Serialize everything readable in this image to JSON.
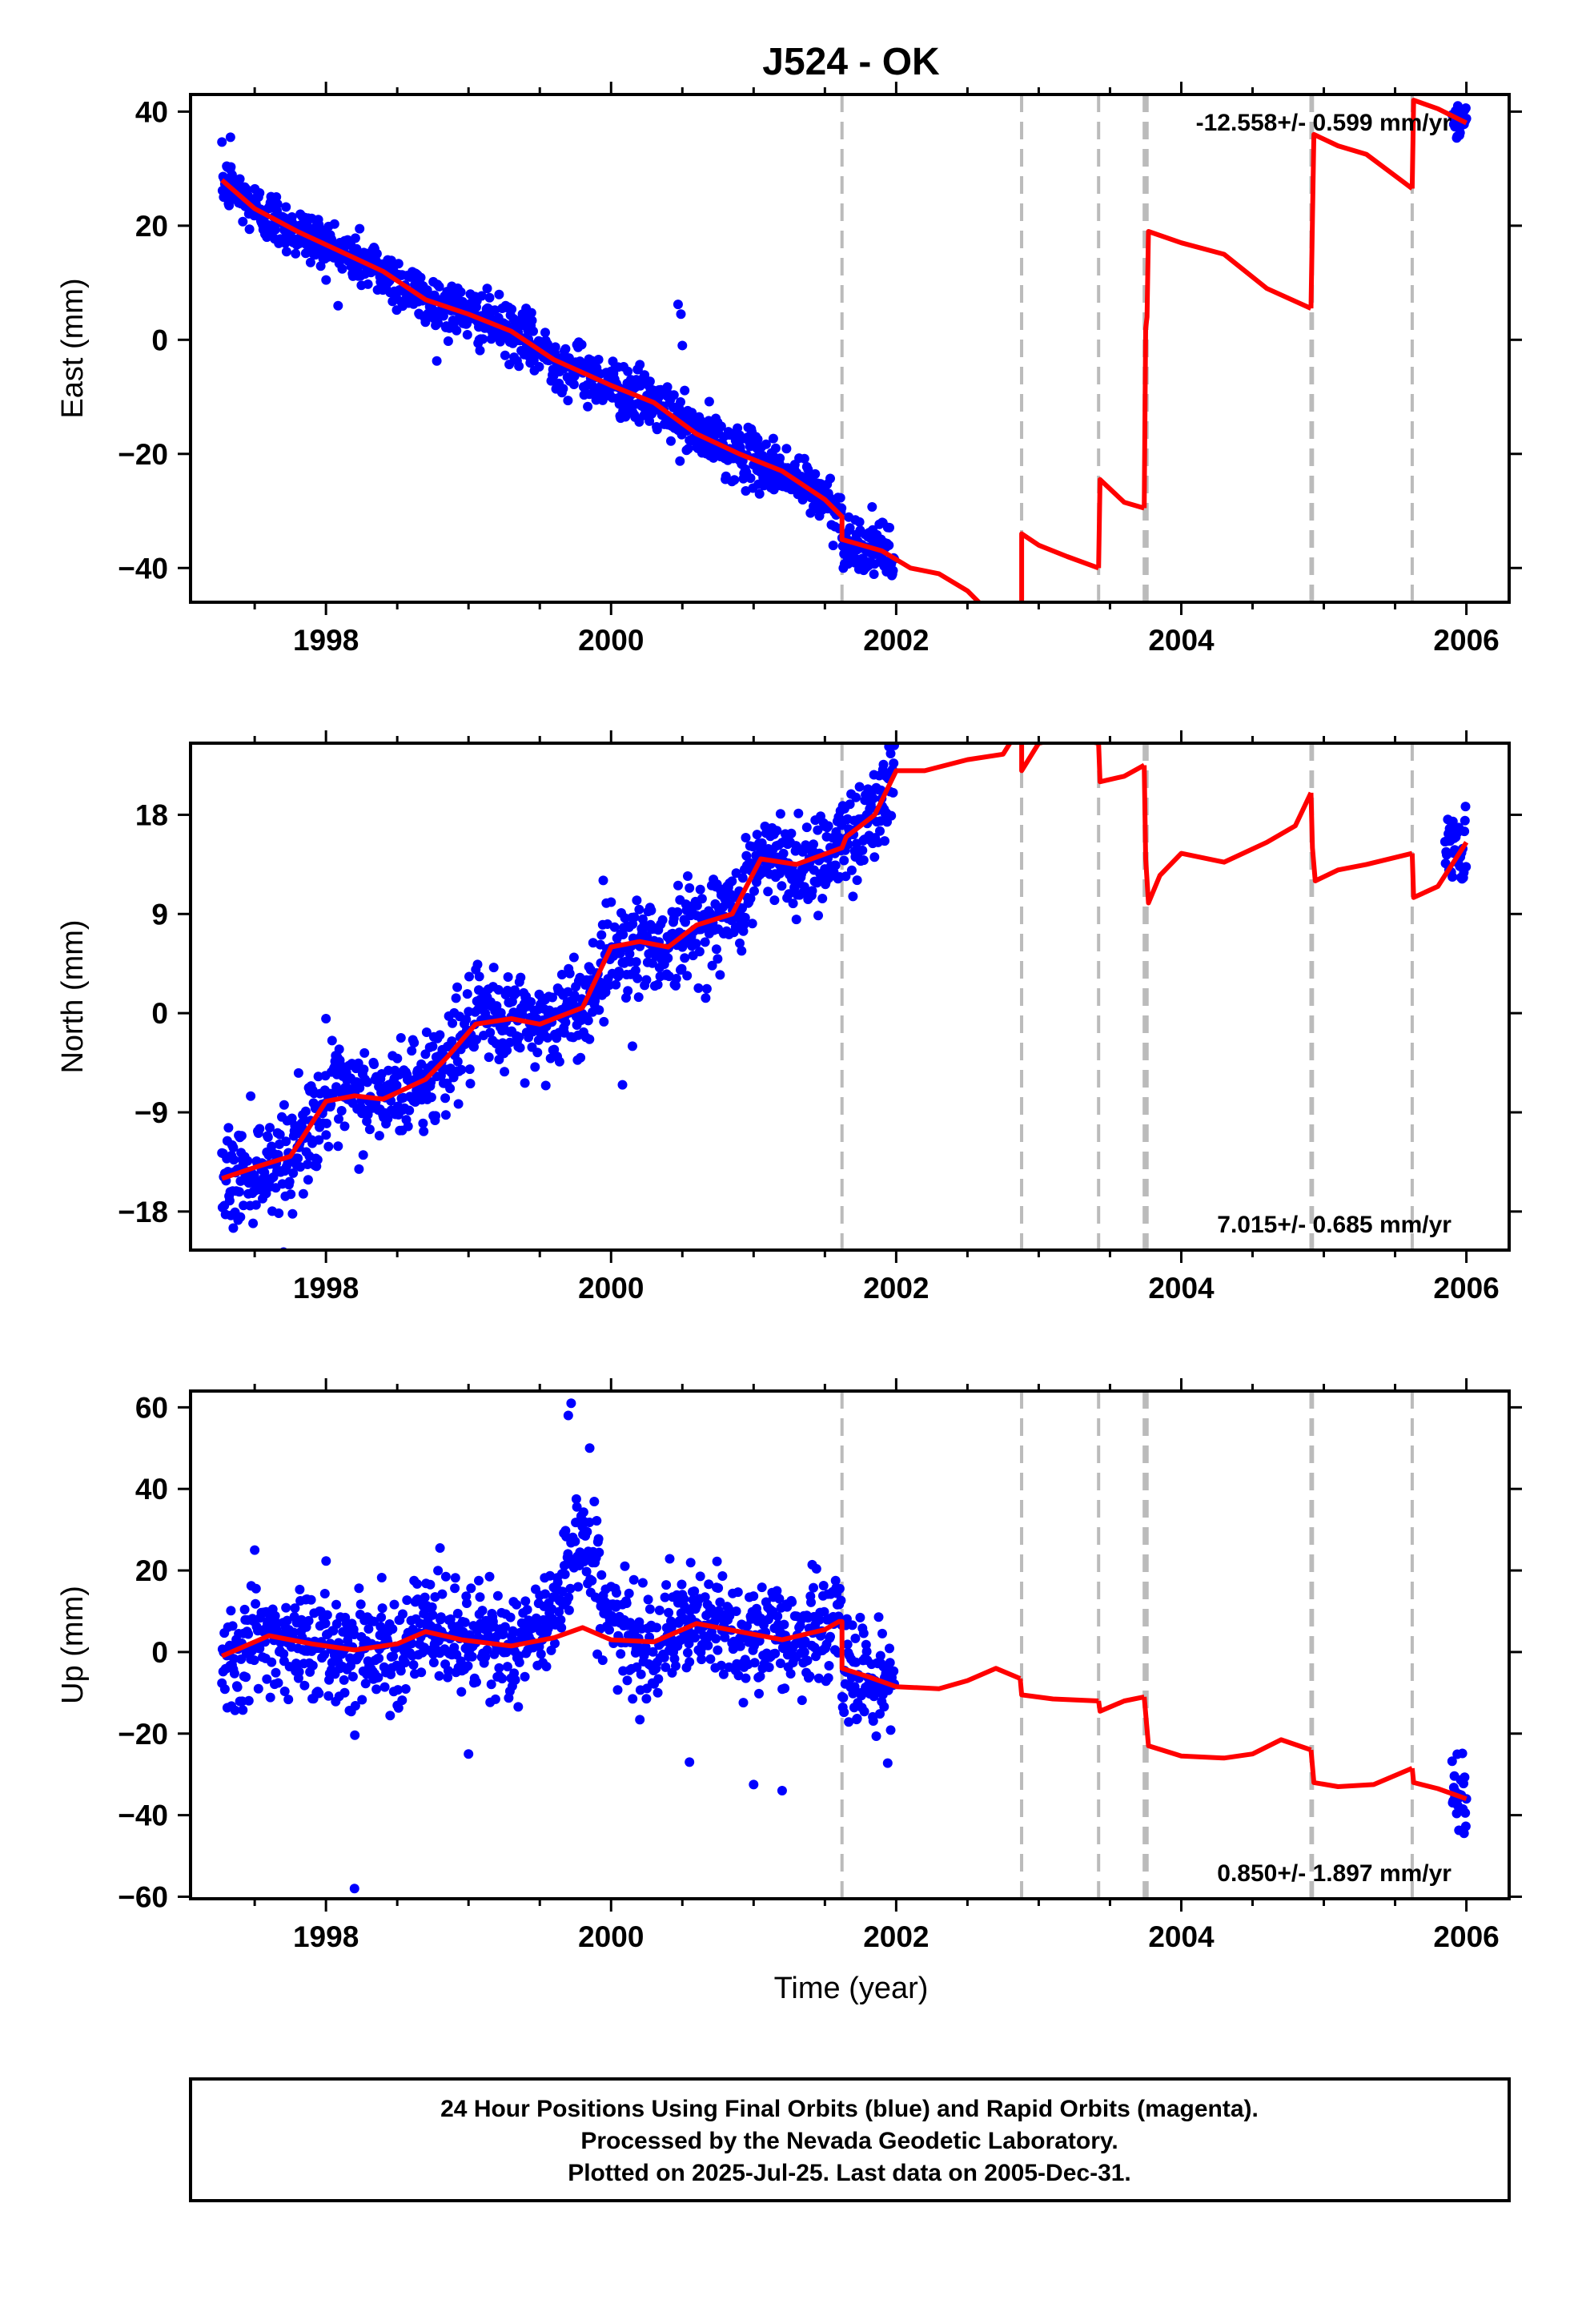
{
  "chart_data": {
    "type": "scatter",
    "title": "J524 - OK",
    "xlabel": "Time (year)",
    "x_ticks": [
      1998,
      2000,
      2002,
      2004,
      2006
    ],
    "x_range": [
      1997.05,
      2006.3
    ],
    "event_lines": [
      2001.62,
      2002.88,
      2003.42,
      2003.74,
      2003.76,
      2004.91,
      2004.92,
      2005.62
    ],
    "footer_lines": [
      "24 Hour Positions Using Final Orbits (blue) and Rapid Orbits (magenta).",
      "Processed by the Nevada Geodetic Laboratory.",
      "Plotted on 2025-Jul-25. Last data on 2005-Dec-31."
    ],
    "colors": {
      "data_points": "#0000ff",
      "model_line": "#ff0000",
      "event_lines": "#bbbbbb",
      "axes": "#000000"
    },
    "panels": [
      {
        "name": "east",
        "ylabel": "East (mm)",
        "ylim": [
          -46,
          43
        ],
        "y_ticks": [
          40,
          20,
          0,
          -20,
          -40
        ],
        "rate_text": "-12.558+/- 0.599 mm/yr",
        "rate_position": "top-right",
        "model": [
          [
            1997.27,
            28
          ],
          [
            1997.5,
            23
          ],
          [
            1997.8,
            19
          ],
          [
            1998.1,
            15.5
          ],
          [
            1998.4,
            12
          ],
          [
            1998.7,
            7
          ],
          [
            1999.0,
            4.5
          ],
          [
            1999.3,
            1.5
          ],
          [
            1999.6,
            -3.5
          ],
          [
            2000.0,
            -8
          ],
          [
            2000.3,
            -11
          ],
          [
            2000.6,
            -16.5
          ],
          [
            2000.9,
            -20
          ],
          [
            2001.2,
            -23
          ],
          [
            2001.5,
            -28
          ],
          [
            2001.62,
            -31
          ],
          [
            2001.62,
            -35
          ],
          [
            2001.9,
            -37
          ],
          [
            2002.1,
            -40
          ],
          [
            2002.3,
            -41
          ],
          [
            2002.5,
            -44
          ],
          [
            2002.7,
            -49
          ]
        ],
        "model_segments_after_gap": [
          [
            [
              2002.88,
              -46
            ],
            [
              2002.88,
              -34
            ],
            [
              2003.0,
              -36
            ],
            [
              2003.2,
              -38
            ],
            [
              2003.42,
              -40
            ]
          ],
          [
            [
              2003.42,
              -40
            ],
            [
              2003.43,
              -24.5
            ],
            [
              2003.6,
              -28.5
            ],
            [
              2003.74,
              -29.5
            ]
          ],
          [
            [
              2003.74,
              -29.5
            ],
            [
              2003.75,
              2
            ],
            [
              2003.76,
              4
            ],
            [
              2003.77,
              19
            ],
            [
              2004.0,
              17
            ],
            [
              2004.3,
              15
            ],
            [
              2004.6,
              9
            ],
            [
              2004.91,
              5.5
            ]
          ],
          [
            [
              2004.91,
              5.5
            ],
            [
              2004.92,
              21
            ],
            [
              2004.93,
              36
            ],
            [
              2005.1,
              34
            ],
            [
              2005.3,
              32.5
            ],
            [
              2005.62,
              26.5
            ]
          ],
          [
            [
              2005.62,
              26.5
            ],
            [
              2005.63,
              42
            ],
            [
              2005.8,
              40.5
            ],
            [
              2006.0,
              38
            ]
          ]
        ],
        "scatter": {
          "noise_mm": 2.4,
          "spikes": [
            [
              1997.33,
              35.5
            ],
            [
              2000.47,
              6.2
            ],
            [
              2000.49,
              4.5
            ],
            [
              2000.5,
              -1
            ]
          ],
          "late_cluster": {
            "x_range": [
              2005.9,
              2006.0
            ],
            "center": 38.5,
            "noise_mm": 1.5
          }
        }
      },
      {
        "name": "north",
        "ylabel": "North (mm)",
        "ylim": [
          -21.5,
          24.5
        ],
        "y_ticks": [
          18,
          9,
          0,
          -9,
          -18
        ],
        "rate_text": "7.015+/- 0.685 mm/yr",
        "rate_position": "bottom-right",
        "model": [
          [
            1997.27,
            -15
          ],
          [
            1997.5,
            -14
          ],
          [
            1997.75,
            -13
          ],
          [
            1998.0,
            -8
          ],
          [
            1998.2,
            -7.5
          ],
          [
            1998.4,
            -7.8
          ],
          [
            1998.7,
            -6
          ],
          [
            1998.85,
            -4
          ],
          [
            1999.05,
            -1
          ],
          [
            1999.3,
            -0.5
          ],
          [
            1999.5,
            -1
          ],
          [
            1999.8,
            0.5
          ],
          [
            2000.0,
            6
          ],
          [
            2000.2,
            6.5
          ],
          [
            2000.4,
            6
          ],
          [
            2000.6,
            8
          ],
          [
            2000.85,
            9
          ],
          [
            2001.05,
            14
          ],
          [
            2001.3,
            13.5
          ],
          [
            2001.62,
            15
          ],
          [
            2001.65,
            16
          ],
          [
            2001.85,
            18
          ],
          [
            2002.0,
            22
          ],
          [
            2002.2,
            22
          ],
          [
            2002.5,
            23
          ],
          [
            2002.75,
            23.5
          ],
          [
            2002.87,
            26
          ]
        ],
        "model_segments_after_gap": [
          [
            [
              2002.88,
              26
            ],
            [
              2002.88,
              22
            ],
            [
              2003.0,
              24.5
            ],
            [
              2003.2,
              25
            ],
            [
              2003.42,
              24.5
            ]
          ],
          [
            [
              2003.42,
              24.5
            ],
            [
              2003.43,
              21
            ],
            [
              2003.6,
              21.5
            ],
            [
              2003.74,
              22.5
            ]
          ],
          [
            [
              2003.74,
              22.5
            ],
            [
              2003.75,
              14
            ],
            [
              2003.77,
              10
            ],
            [
              2003.85,
              12.5
            ],
            [
              2004.0,
              14.5
            ],
            [
              2004.3,
              13.7
            ],
            [
              2004.6,
              15.5
            ],
            [
              2004.8,
              17
            ],
            [
              2004.91,
              20
            ]
          ],
          [
            [
              2004.91,
              20
            ],
            [
              2004.92,
              15
            ],
            [
              2004.94,
              12
            ],
            [
              2005.1,
              13
            ],
            [
              2005.3,
              13.5
            ],
            [
              2005.62,
              14.5
            ]
          ],
          [
            [
              2005.62,
              14.5
            ],
            [
              2005.63,
              10.5
            ],
            [
              2005.8,
              11.5
            ],
            [
              2006.0,
              15.5
            ]
          ]
        ],
        "scatter": {
          "noise_mm": 2.2,
          "spikes": [
            [
              1997.35,
              -19.5
            ],
            [
              1997.4,
              -18.5
            ],
            [
              1998.0,
              -0.5
            ],
            [
              2000.08,
              -6.5
            ],
            [
              2000.15,
              -3
            ],
            [
              2001.3,
              8.5
            ]
          ],
          "late_cluster": {
            "x_range": [
              2005.85,
              2006.0
            ],
            "center": 15.5,
            "noise_mm": 2.0
          }
        }
      },
      {
        "name": "up",
        "ylabel": "Up (mm)",
        "ylim": [
          -60.5,
          64
        ],
        "y_ticks": [
          60,
          40,
          20,
          0,
          -20,
          -40,
          -60
        ],
        "rate_text": "0.850+/- 1.897 mm/yr",
        "rate_position": "bottom-right",
        "model": [
          [
            1997.27,
            -1
          ],
          [
            1997.6,
            4
          ],
          [
            1997.9,
            2
          ],
          [
            1998.2,
            0.5
          ],
          [
            1998.5,
            2
          ],
          [
            1998.7,
            5
          ],
          [
            1998.95,
            3
          ],
          [
            1999.3,
            1.5
          ],
          [
            1999.6,
            3.5
          ],
          [
            1999.8,
            6
          ],
          [
            2000.0,
            3
          ],
          [
            2000.3,
            2.5
          ],
          [
            2000.6,
            7
          ],
          [
            2000.9,
            5
          ],
          [
            2001.2,
            3
          ],
          [
            2001.5,
            5.5
          ],
          [
            2001.6,
            7.5
          ],
          [
            2001.62,
            7.5
          ],
          [
            2001.62,
            -4
          ],
          [
            2001.8,
            -6
          ],
          [
            2002.0,
            -8.5
          ],
          [
            2002.3,
            -9
          ],
          [
            2002.5,
            -7
          ],
          [
            2002.7,
            -4
          ],
          [
            2002.87,
            -6.5
          ]
        ],
        "model_segments_after_gap": [
          [
            [
              2002.87,
              -6.5
            ],
            [
              2002.88,
              -10.5
            ],
            [
              2003.1,
              -11.5
            ],
            [
              2003.42,
              -12
            ]
          ],
          [
            [
              2003.42,
              -12
            ],
            [
              2003.43,
              -14.5
            ],
            [
              2003.6,
              -12
            ],
            [
              2003.74,
              -11
            ]
          ],
          [
            [
              2003.74,
              -11
            ],
            [
              2003.77,
              -23
            ],
            [
              2004.0,
              -25.5
            ],
            [
              2004.3,
              -26
            ],
            [
              2004.5,
              -25
            ],
            [
              2004.7,
              -21.5
            ],
            [
              2004.91,
              -24
            ]
          ],
          [
            [
              2004.91,
              -24
            ],
            [
              2004.93,
              -32
            ],
            [
              2005.1,
              -33
            ],
            [
              2005.35,
              -32.5
            ],
            [
              2005.62,
              -28.5
            ]
          ],
          [
            [
              2005.62,
              -28.5
            ],
            [
              2005.63,
              -32
            ],
            [
              2005.8,
              -33.5
            ],
            [
              2006.0,
              -36
            ]
          ]
        ],
        "scatter": {
          "noise_mm": 6.5,
          "spikes": [
            [
              1999.72,
              61
            ],
            [
              1999.7,
              58
            ],
            [
              1999.85,
              50
            ],
            [
              1998.2,
              -58
            ],
            [
              1999.0,
              -25
            ],
            [
              2000.55,
              -27
            ],
            [
              2001.0,
              -32.5
            ],
            [
              2001.2,
              -34
            ],
            [
              1997.5,
              25
            ],
            [
              1998.8,
              25.5
            ]
          ],
          "late_cluster": {
            "x_range": [
              2005.9,
              2006.0
            ],
            "center": -35,
            "noise_mm": 4.0
          }
        }
      }
    ]
  }
}
